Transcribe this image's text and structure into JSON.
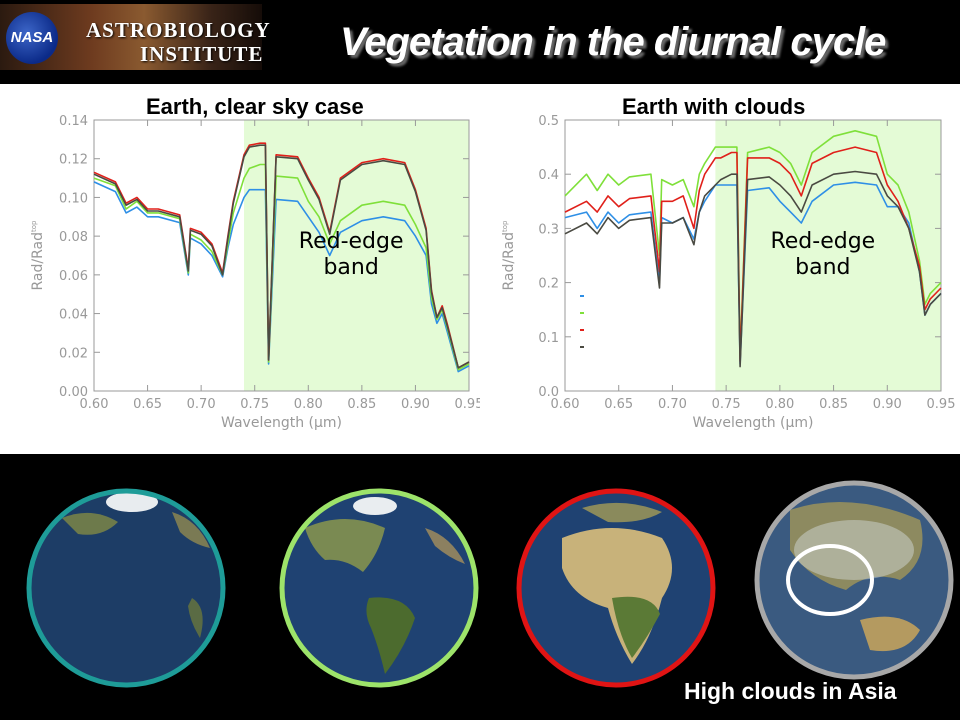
{
  "header": {
    "logo_line1": "ASTROBIOLOGY",
    "logo_line2": "INSTITUTE",
    "logo_badge": "NASA",
    "title": "Vegetation in the diurnal cycle"
  },
  "colors": {
    "blue": "#2e8fe6",
    "green": "#7fe03a",
    "red": "#e0201a",
    "dark": "#4a4a42",
    "band": "#e4fbd6"
  },
  "chart_data": [
    {
      "type": "line",
      "title": "Earth, clear sky case",
      "xlabel": "Wavelength (μm)",
      "ylabel": "Rad/Rad",
      "ylabel_sup": "top",
      "xlim": [
        0.6,
        0.95
      ],
      "ylim": [
        0.0,
        0.14
      ],
      "xticks": [
        "0.60",
        "0.65",
        "0.70",
        "0.75",
        "0.80",
        "0.85",
        "0.90",
        "0.95"
      ],
      "yticks": [
        "0.00",
        "0.02",
        "0.04",
        "0.06",
        "0.08",
        "0.10",
        "0.12",
        "0.14"
      ],
      "shaded_band": {
        "x0": 0.74,
        "x1": 0.95,
        "label_line1": "Red-edge",
        "label_line2": "band"
      },
      "x": [
        0.6,
        0.62,
        0.63,
        0.64,
        0.65,
        0.66,
        0.68,
        0.688,
        0.69,
        0.7,
        0.71,
        0.72,
        0.725,
        0.73,
        0.74,
        0.745,
        0.755,
        0.76,
        0.763,
        0.77,
        0.79,
        0.8,
        0.81,
        0.82,
        0.83,
        0.85,
        0.87,
        0.89,
        0.9,
        0.91,
        0.915,
        0.92,
        0.925,
        0.93,
        0.94,
        0.95
      ],
      "series": [
        {
          "color_key": "blue",
          "values": [
            0.108,
            0.103,
            0.092,
            0.095,
            0.09,
            0.09,
            0.087,
            0.06,
            0.079,
            0.076,
            0.07,
            0.059,
            0.074,
            0.086,
            0.1,
            0.104,
            0.104,
            0.104,
            0.014,
            0.099,
            0.098,
            0.09,
            0.082,
            0.07,
            0.082,
            0.088,
            0.09,
            0.088,
            0.08,
            0.07,
            0.045,
            0.035,
            0.04,
            0.03,
            0.01,
            0.013
          ]
        },
        {
          "color_key": "green",
          "values": [
            0.11,
            0.106,
            0.094,
            0.098,
            0.092,
            0.092,
            0.089,
            0.061,
            0.081,
            0.078,
            0.072,
            0.06,
            0.076,
            0.092,
            0.11,
            0.115,
            0.117,
            0.117,
            0.015,
            0.111,
            0.11,
            0.098,
            0.09,
            0.076,
            0.088,
            0.096,
            0.098,
            0.096,
            0.086,
            0.074,
            0.048,
            0.037,
            0.042,
            0.032,
            0.011,
            0.014
          ]
        },
        {
          "color_key": "red",
          "values": [
            0.113,
            0.108,
            0.097,
            0.1,
            0.094,
            0.094,
            0.091,
            0.063,
            0.084,
            0.082,
            0.076,
            0.061,
            0.08,
            0.098,
            0.122,
            0.127,
            0.128,
            0.128,
            0.016,
            0.122,
            0.121,
            0.11,
            0.1,
            0.082,
            0.11,
            0.118,
            0.12,
            0.118,
            0.104,
            0.084,
            0.052,
            0.038,
            0.044,
            0.034,
            0.012,
            0.015
          ]
        },
        {
          "color_key": "dark",
          "values": [
            0.112,
            0.107,
            0.096,
            0.099,
            0.093,
            0.093,
            0.09,
            0.062,
            0.083,
            0.081,
            0.075,
            0.06,
            0.079,
            0.097,
            0.121,
            0.126,
            0.127,
            0.127,
            0.016,
            0.121,
            0.12,
            0.109,
            0.099,
            0.081,
            0.109,
            0.117,
            0.119,
            0.117,
            0.103,
            0.083,
            0.051,
            0.038,
            0.043,
            0.033,
            0.012,
            0.015
          ]
        }
      ]
    },
    {
      "type": "line",
      "title": "Earth with clouds",
      "xlabel": "Wavelength (μm)",
      "ylabel": "Rad/Rad",
      "ylabel_sup": "top",
      "xlim": [
        0.6,
        0.95
      ],
      "ylim": [
        0.0,
        0.5
      ],
      "xticks": [
        "0.60",
        "0.65",
        "0.70",
        "0.75",
        "0.80",
        "0.85",
        "0.90",
        "0.95"
      ],
      "yticks": [
        "0.0",
        "0.1",
        "0.2",
        "0.3",
        "0.4",
        "0.5"
      ],
      "shaded_band": {
        "x0": 0.74,
        "x1": 0.95,
        "label_line1": "Red-edge",
        "label_line2": "band"
      },
      "x": [
        0.6,
        0.62,
        0.63,
        0.64,
        0.65,
        0.66,
        0.68,
        0.688,
        0.69,
        0.7,
        0.71,
        0.72,
        0.725,
        0.73,
        0.74,
        0.745,
        0.755,
        0.76,
        0.763,
        0.77,
        0.79,
        0.8,
        0.81,
        0.82,
        0.83,
        0.85,
        0.87,
        0.89,
        0.9,
        0.91,
        0.92,
        0.93,
        0.935,
        0.94,
        0.95
      ],
      "series": [
        {
          "color_key": "blue",
          "values": [
            0.32,
            0.33,
            0.3,
            0.33,
            0.31,
            0.325,
            0.33,
            0.2,
            0.32,
            0.31,
            0.32,
            0.28,
            0.33,
            0.35,
            0.38,
            0.38,
            0.38,
            0.38,
            0.05,
            0.37,
            0.375,
            0.35,
            0.33,
            0.31,
            0.35,
            0.38,
            0.385,
            0.38,
            0.34,
            0.34,
            0.31,
            0.22,
            0.14,
            0.16,
            0.18
          ]
        },
        {
          "color_key": "green",
          "values": [
            0.36,
            0.4,
            0.37,
            0.4,
            0.38,
            0.395,
            0.4,
            0.25,
            0.39,
            0.38,
            0.39,
            0.34,
            0.4,
            0.42,
            0.45,
            0.45,
            0.45,
            0.45,
            0.06,
            0.44,
            0.45,
            0.44,
            0.42,
            0.38,
            0.44,
            0.47,
            0.48,
            0.47,
            0.4,
            0.38,
            0.33,
            0.24,
            0.16,
            0.18,
            0.2
          ]
        },
        {
          "color_key": "red",
          "values": [
            0.33,
            0.35,
            0.33,
            0.36,
            0.34,
            0.355,
            0.36,
            0.22,
            0.35,
            0.35,
            0.36,
            0.3,
            0.37,
            0.4,
            0.43,
            0.43,
            0.44,
            0.44,
            0.055,
            0.43,
            0.43,
            0.42,
            0.4,
            0.36,
            0.42,
            0.44,
            0.45,
            0.44,
            0.38,
            0.35,
            0.3,
            0.23,
            0.15,
            0.17,
            0.19
          ]
        },
        {
          "color_key": "dark",
          "values": [
            0.29,
            0.31,
            0.29,
            0.32,
            0.3,
            0.315,
            0.32,
            0.19,
            0.31,
            0.31,
            0.32,
            0.27,
            0.33,
            0.36,
            0.38,
            0.39,
            0.4,
            0.4,
            0.045,
            0.39,
            0.395,
            0.38,
            0.36,
            0.33,
            0.38,
            0.4,
            0.405,
            0.4,
            0.36,
            0.34,
            0.3,
            0.22,
            0.14,
            0.16,
            0.18
          ]
        }
      ]
    }
  ],
  "globes": [
    {
      "ring_key": "teal"
    },
    {
      "ring_key": "lightgreen"
    },
    {
      "ring_key": "red"
    },
    {
      "ring_key": "gray"
    }
  ],
  "ring_colors": {
    "teal": "#1e9c98",
    "lightgreen": "#9de36a",
    "red": "#e01414",
    "gray": "#a8a8a8"
  },
  "caption": "High clouds in Asia"
}
